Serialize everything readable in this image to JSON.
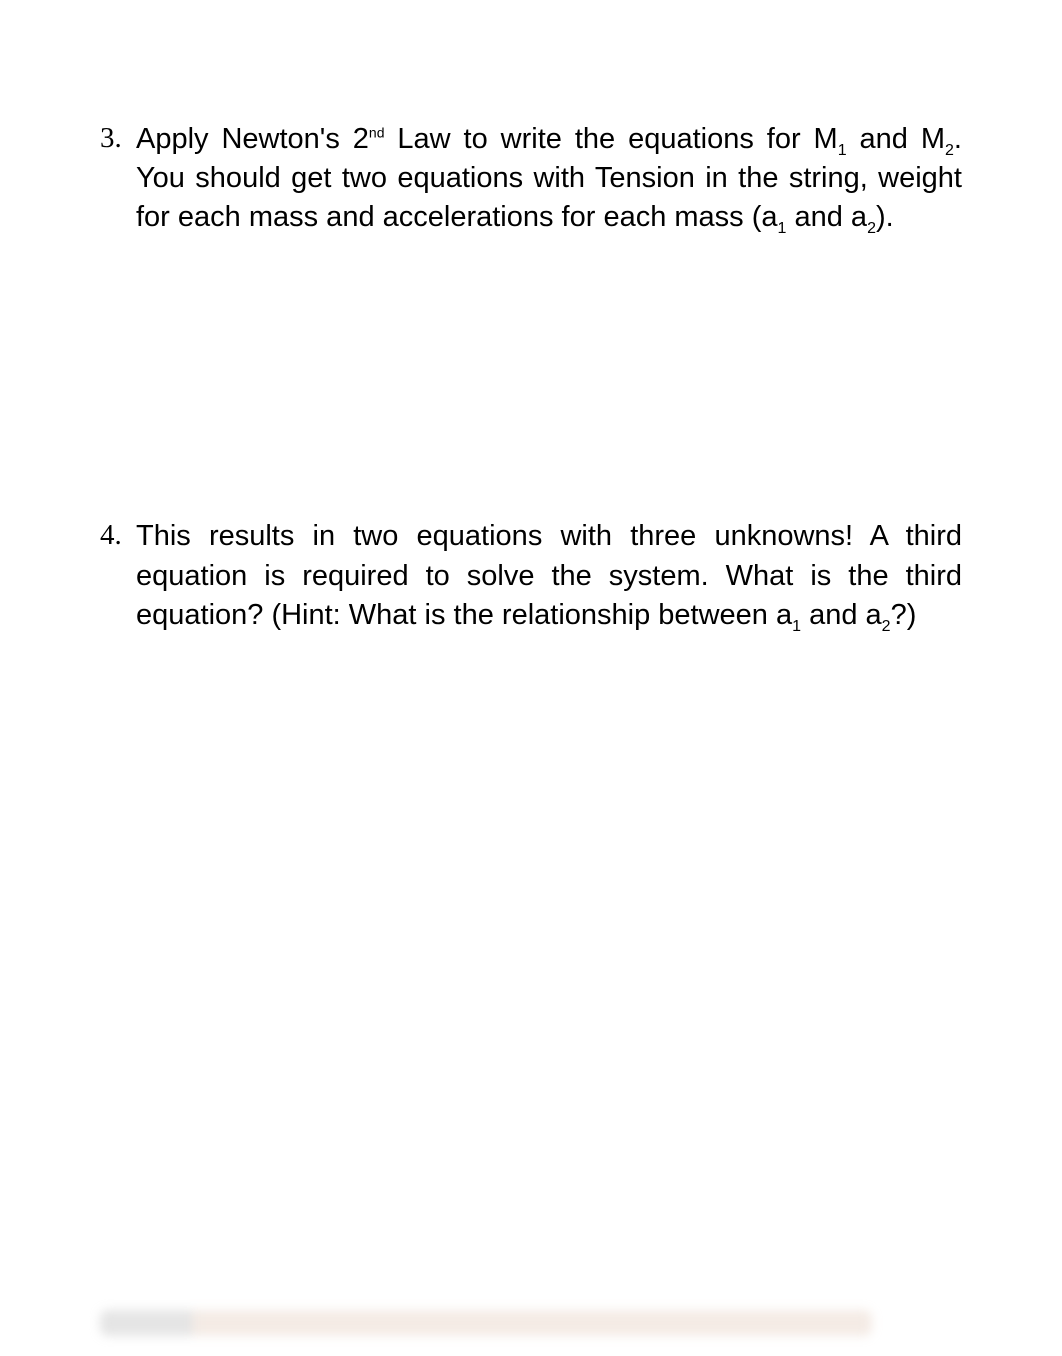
{
  "items": [
    {
      "number": "3.",
      "prefix": "Apply Newton's 2",
      "sup": "nd",
      "mid1": " Law to write the equations for M",
      "sub1": "1",
      "mid2": " and M",
      "sub2": "2",
      "mid3": ". You should get two equations with Tension in the string, weight for each mass and accelerations for each mass (a",
      "sub3": "1",
      "mid4": " and a",
      "sub4": "2",
      "suffix": ")."
    },
    {
      "number": "4.",
      "prefix": "This results in two equations with three unknowns! A third equation is required to solve the system.  What is the third equation? (Hint: What is the relationship between a",
      "sub1": "1",
      "mid1": " and a",
      "sub2": "2",
      "suffix": "?)"
    }
  ]
}
